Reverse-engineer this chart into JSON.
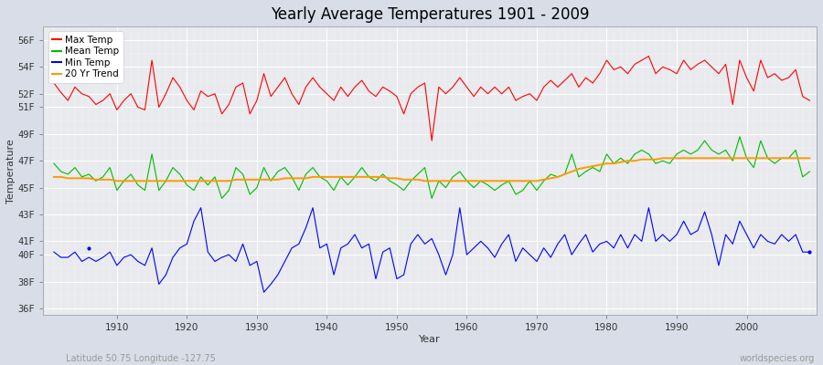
{
  "title": "Yearly Average Temperatures 1901 - 2009",
  "xlabel": "Year",
  "ylabel": "Temperature",
  "years_start": 1901,
  "years_end": 2009,
  "fig_bg_color": "#d8dde8",
  "plot_bg_color": "#e8eaee",
  "grid_color": "#ffffff",
  "max_temp_color": "#ff0000",
  "mean_temp_color": "#00bb00",
  "min_temp_color": "#0000ff",
  "trend_color": "#ff9900",
  "legend_labels": [
    "Max Temp",
    "Mean Temp",
    "Min Temp",
    "20 Yr Trend"
  ],
  "ylim": [
    35.5,
    57.0
  ],
  "xlim": [
    1899.5,
    2010
  ],
  "footnote_left": "Latitude 50.75 Longitude -127.75",
  "footnote_right": "worldspecies.org",
  "max_temps": [
    52.8,
    52.1,
    51.5,
    52.5,
    52.0,
    51.8,
    51.2,
    51.5,
    52.0,
    50.8,
    51.5,
    52.0,
    51.0,
    50.8,
    54.5,
    51.0,
    52.0,
    53.2,
    52.5,
    51.5,
    50.8,
    52.2,
    51.8,
    52.0,
    50.5,
    51.2,
    52.5,
    52.8,
    50.5,
    51.5,
    53.5,
    51.8,
    52.5,
    53.2,
    52.0,
    51.2,
    52.5,
    53.2,
    52.5,
    52.0,
    51.5,
    52.5,
    51.8,
    52.5,
    53.0,
    52.2,
    51.8,
    52.5,
    52.2,
    51.8,
    50.5,
    52.0,
    52.5,
    52.8,
    48.5,
    52.5,
    52.0,
    52.5,
    53.2,
    52.5,
    51.8,
    52.5,
    52.0,
    52.5,
    52.0,
    52.5,
    51.5,
    51.8,
    52.0,
    51.5,
    52.5,
    53.0,
    52.5,
    53.0,
    53.5,
    52.5,
    53.2,
    52.8,
    53.5,
    54.5,
    53.8,
    54.0,
    53.5,
    54.2,
    54.5,
    54.8,
    53.5,
    54.0,
    53.8,
    53.5,
    54.5,
    53.8,
    54.2,
    54.5,
    54.0,
    53.5,
    54.2,
    51.2,
    54.5,
    53.2,
    52.2,
    54.5,
    53.2,
    53.5,
    53.0,
    53.2,
    53.8,
    51.8,
    51.5
  ],
  "mean_temps": [
    46.8,
    46.2,
    46.0,
    46.5,
    45.8,
    46.0,
    45.5,
    45.8,
    46.5,
    44.8,
    45.5,
    46.0,
    45.2,
    44.8,
    47.5,
    44.8,
    45.5,
    46.5,
    46.0,
    45.2,
    44.8,
    45.8,
    45.2,
    45.8,
    44.2,
    44.8,
    46.5,
    46.0,
    44.5,
    45.0,
    46.5,
    45.5,
    46.2,
    46.5,
    45.8,
    44.8,
    46.0,
    46.5,
    45.8,
    45.5,
    44.8,
    45.8,
    45.2,
    45.8,
    46.5,
    45.8,
    45.5,
    46.0,
    45.5,
    45.2,
    44.8,
    45.5,
    46.0,
    46.5,
    44.2,
    45.5,
    45.0,
    45.8,
    46.2,
    45.5,
    45.0,
    45.5,
    45.2,
    44.8,
    45.2,
    45.5,
    44.5,
    44.8,
    45.5,
    44.8,
    45.5,
    46.0,
    45.8,
    46.0,
    47.5,
    45.8,
    46.2,
    46.5,
    46.2,
    47.5,
    46.8,
    47.2,
    46.8,
    47.5,
    47.8,
    47.5,
    46.8,
    47.0,
    46.8,
    47.5,
    47.8,
    47.5,
    47.8,
    48.5,
    47.8,
    47.5,
    47.8,
    47.0,
    48.8,
    47.2,
    46.5,
    48.5,
    47.2,
    46.8,
    47.2,
    47.2,
    47.8,
    45.8,
    46.2
  ],
  "min_temps": [
    40.2,
    39.8,
    39.8,
    40.2,
    39.5,
    39.8,
    39.5,
    39.8,
    40.2,
    39.2,
    39.8,
    40.0,
    39.5,
    39.2,
    40.5,
    37.8,
    38.5,
    39.8,
    40.5,
    40.8,
    42.5,
    43.5,
    40.2,
    39.5,
    39.8,
    40.0,
    39.5,
    40.8,
    39.2,
    39.5,
    37.2,
    37.8,
    38.5,
    39.5,
    40.5,
    40.8,
    42.0,
    43.5,
    40.5,
    40.8,
    38.5,
    40.5,
    40.8,
    41.5,
    40.5,
    40.8,
    38.2,
    40.2,
    40.5,
    38.2,
    38.5,
    40.8,
    41.5,
    40.8,
    41.2,
    40.0,
    38.5,
    40.0,
    43.5,
    40.0,
    40.5,
    41.0,
    40.5,
    39.8,
    40.8,
    41.5,
    39.5,
    40.5,
    40.0,
    39.5,
    40.5,
    39.8,
    40.8,
    41.5,
    40.0,
    40.8,
    41.5,
    40.2,
    40.8,
    41.0,
    40.5,
    41.5,
    40.5,
    41.5,
    41.0,
    43.5,
    41.0,
    41.5,
    41.0,
    41.5,
    42.5,
    41.5,
    41.8,
    43.2,
    41.5,
    39.2,
    41.5,
    40.8,
    42.5,
    41.5,
    40.5,
    41.5,
    41.0,
    40.8,
    41.5,
    41.0,
    41.5,
    40.2,
    40.2
  ],
  "trend_temps": [
    45.8,
    45.8,
    45.7,
    45.7,
    45.7,
    45.7,
    45.6,
    45.6,
    45.6,
    45.5,
    45.5,
    45.5,
    45.5,
    45.5,
    45.5,
    45.5,
    45.5,
    45.5,
    45.5,
    45.5,
    45.5,
    45.5,
    45.5,
    45.5,
    45.5,
    45.5,
    45.6,
    45.6,
    45.6,
    45.6,
    45.6,
    45.6,
    45.6,
    45.7,
    45.7,
    45.7,
    45.7,
    45.8,
    45.8,
    45.8,
    45.8,
    45.8,
    45.8,
    45.8,
    45.8,
    45.8,
    45.8,
    45.8,
    45.7,
    45.7,
    45.6,
    45.6,
    45.6,
    45.5,
    45.5,
    45.5,
    45.5,
    45.5,
    45.5,
    45.5,
    45.5,
    45.5,
    45.5,
    45.5,
    45.5,
    45.5,
    45.5,
    45.5,
    45.5,
    45.5,
    45.6,
    45.7,
    45.8,
    46.0,
    46.2,
    46.4,
    46.5,
    46.6,
    46.7,
    46.8,
    46.8,
    46.9,
    47.0,
    47.0,
    47.1,
    47.1,
    47.1,
    47.2,
    47.2,
    47.2,
    47.2,
    47.2,
    47.2,
    47.2,
    47.2,
    47.2,
    47.2,
    47.2,
    47.2,
    47.2,
    47.2,
    47.2,
    47.2,
    47.2,
    47.2,
    47.2,
    47.2,
    47.2,
    47.2
  ]
}
